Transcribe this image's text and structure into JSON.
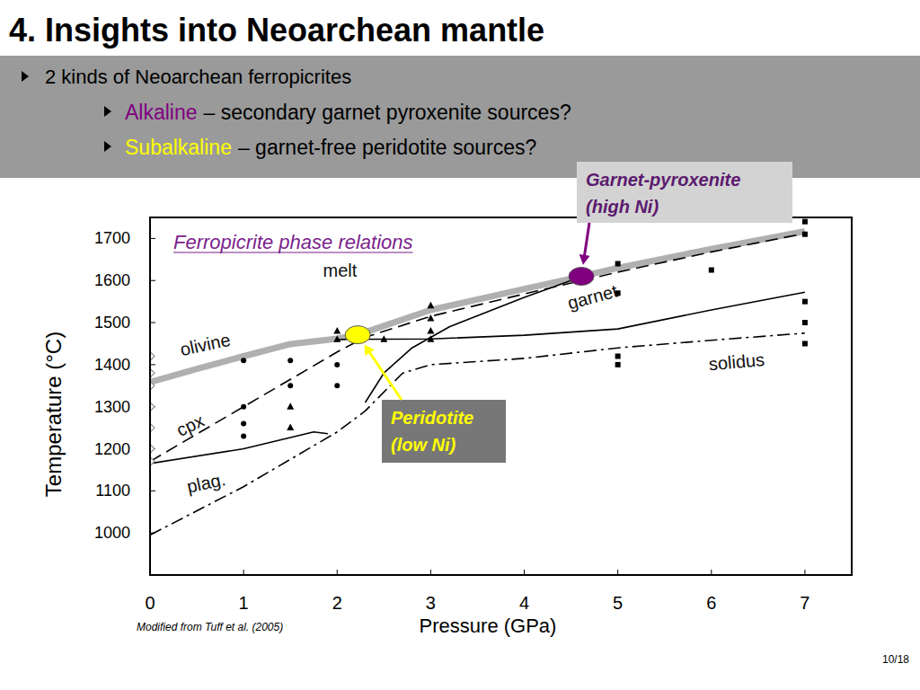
{
  "slide": {
    "title": "4. Insights into Neoarchean mantle",
    "bullets": [
      {
        "text": "2 kinds of Neoarchean ferropicrites",
        "sub": [
          {
            "keyword": "Alkaline",
            "text": "– secondary garnet pyroxenite sources?"
          },
          {
            "keyword": "Subalkaline",
            "text": "– garnet-free peridotite sources?"
          }
        ]
      }
    ],
    "page": "10/18"
  },
  "chart_data": {
    "type": "line",
    "title": "Ferropicrite phase relations",
    "x_label": "Pressure (GPa)",
    "y_label": "Temperature (°C)",
    "source": "Modified from Tuff et al. (2005)",
    "xlim": [
      0,
      7.5
    ],
    "ylim": [
      900,
      1750
    ],
    "xticks": [
      0,
      1,
      2,
      3,
      4,
      5,
      6,
      7
    ],
    "yticks": [
      1000,
      1100,
      1200,
      1300,
      1400,
      1500,
      1600,
      1700
    ],
    "grid": false,
    "series": [
      {
        "type": "line",
        "line_style": "thick-gray",
        "color": "#b0b0b0",
        "x": [
          0,
          0.5,
          1,
          1.5,
          2,
          2.22,
          3,
          4,
          4.61,
          5,
          6,
          7
        ],
        "values": [
          1358,
          1390,
          1420,
          1449,
          1462,
          1471,
          1530,
          1580,
          1610,
          1630,
          1675,
          1717
        ]
      },
      {
        "type": "line",
        "line_style": "dashed",
        "color": "#000000",
        "x": [
          0,
          0.5,
          1,
          1.5,
          2,
          2.3,
          3,
          4,
          5,
          6,
          7
        ],
        "values": [
          1170,
          1235,
          1300,
          1365,
          1430,
          1465,
          1515,
          1568,
          1620,
          1668,
          1712
        ]
      },
      {
        "type": "line",
        "line_style": "solid",
        "color": "#000000",
        "x": [
          2,
          3,
          4,
          5,
          6,
          7
        ],
        "values": [
          1460,
          1461,
          1470,
          1485,
          1530,
          1572
        ]
      },
      {
        "type": "line",
        "line_style": "solid",
        "color": "#000000",
        "x": [
          2.3,
          2.5,
          2.8,
          3.2,
          4,
          4.5
        ],
        "values": [
          1310,
          1380,
          1440,
          1490,
          1560,
          1600
        ]
      },
      {
        "type": "line",
        "line_style": "solid",
        "color": "#000000",
        "x": [
          0,
          1,
          1.75,
          1.9
        ],
        "values": [
          1165,
          1200,
          1240,
          1236
        ]
      },
      {
        "type": "line",
        "line_style": "dashdot",
        "color": "#000000",
        "x": [
          0,
          1,
          2,
          2.3,
          2.7,
          3,
          4,
          5,
          6,
          7
        ],
        "values": [
          995,
          1110,
          1240,
          1290,
          1380,
          1400,
          1415,
          1440,
          1458,
          1475
        ]
      },
      {
        "type": "scatter",
        "marker": "diamond",
        "color": "#999999",
        "x": [
          0,
          0,
          0,
          0,
          0,
          0,
          0
        ],
        "values": [
          1420,
          1380,
          1350,
          1300,
          1250,
          1200,
          1170
        ]
      },
      {
        "type": "scatter",
        "marker": "circle",
        "color": "#000000",
        "x": [
          1,
          1,
          1,
          1,
          1.5,
          1.5,
          2,
          2
        ],
        "values": [
          1410,
          1300,
          1260,
          1230,
          1410,
          1350,
          1400,
          1350
        ]
      },
      {
        "type": "scatter",
        "marker": "triangle",
        "color": "#000000",
        "x": [
          1.5,
          1.5,
          2,
          2,
          2.5,
          3,
          3,
          3,
          3
        ],
        "values": [
          1300,
          1250,
          1480,
          1460,
          1460,
          1540,
          1510,
          1480,
          1460
        ]
      },
      {
        "type": "scatter",
        "marker": "square",
        "color": "#000000",
        "x": [
          5,
          5,
          5,
          5,
          6,
          7,
          7,
          7,
          7,
          7
        ],
        "values": [
          1640,
          1570,
          1420,
          1400,
          1625,
          1740,
          1710,
          1550,
          1500,
          1450
        ]
      }
    ],
    "annotations": [
      {
        "text": "melt",
        "x": 2.03,
        "y": 1625
      },
      {
        "text": "olivine",
        "x": 0.59,
        "y": 1448
      },
      {
        "text": "cpx",
        "x": 0.43,
        "y": 1256
      },
      {
        "text": "plag.",
        "x": 0.6,
        "y": 1119
      },
      {
        "text": "garnet",
        "x": 4.73,
        "y": 1561
      },
      {
        "text": "solidus",
        "x": 6.27,
        "y": 1407
      }
    ],
    "highlights": [
      {
        "lines": [
          "Garnet-pyroxenite",
          "(high Ni)"
        ],
        "x": 4.61,
        "y": 1610,
        "color": "#800080"
      },
      {
        "lines": [
          "Peridotite",
          "(low Ni)"
        ],
        "x": 2.22,
        "y": 1471,
        "color": "#ffff00"
      }
    ]
  }
}
